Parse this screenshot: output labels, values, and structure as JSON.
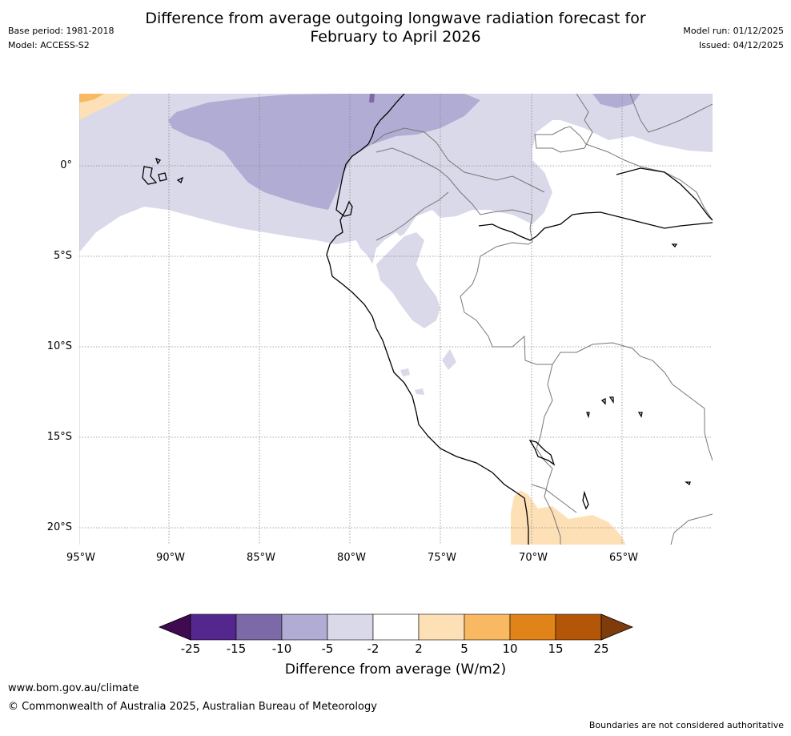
{
  "title": {
    "line1": "Difference from average outgoing longwave radiation forecast for",
    "line2": "February to April 2026"
  },
  "meta": {
    "base_period": "Base period: 1981-2018",
    "model": "Model: ACCESS-S2",
    "model_run": "Model run: 01/12/2025",
    "issued": "Issued: 04/12/2025"
  },
  "map": {
    "lat_labels": [
      "0°",
      "5°S",
      "10°S",
      "15°S",
      "20°S"
    ],
    "lon_labels": [
      "95°W",
      "90°W",
      "85°W",
      "80°W",
      "75°W",
      "70°W",
      "65°W"
    ]
  },
  "colorbar": {
    "ticks": [
      "-25",
      "-15",
      "-10",
      "-5",
      "-2",
      "2",
      "5",
      "10",
      "15",
      "25"
    ],
    "label": "Difference from average (W/m2)",
    "colors": [
      "#3f0a4f",
      "#54278f",
      "#7c6aa8",
      "#b1acd3",
      "#d9d9ea",
      "#ffffff",
      "#fde0b6",
      "#f9b862",
      "#e08318",
      "#b45608",
      "#7f3c0a"
    ]
  },
  "footer": {
    "url": "www.bom.gov.au/climate",
    "copyright": "© Commonwealth of Australia 2025, Australian Bureau of Meteorology",
    "note": "Boundaries are not considered authoritative"
  }
}
